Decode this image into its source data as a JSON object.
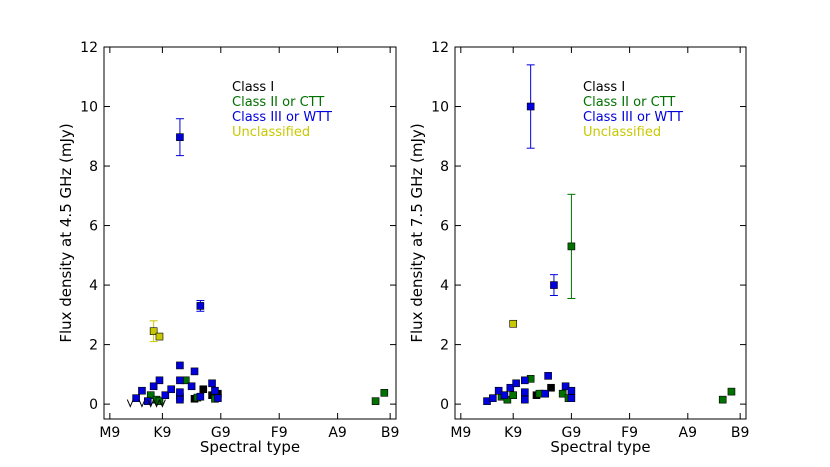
{
  "chart_data": [
    {
      "type": "scatter",
      "title": "",
      "xlabel": "Spectral type",
      "ylabel": "Flux density at 4.5 GHz (mJy)",
      "xlim": [
        -1,
        49
      ],
      "ylim": [
        -0.5,
        12
      ],
      "x_tick_values": [
        0,
        9,
        19,
        29,
        39,
        48
      ],
      "x_tick_labels": [
        "M9",
        "K9",
        "G9",
        "F9",
        "A9",
        "B9"
      ],
      "y_tick_values": [
        0,
        2,
        4,
        6,
        8,
        10,
        12
      ],
      "legend": [
        "Class I",
        "Class II or CTT",
        "Class III or WTT",
        "Unclassified"
      ],
      "legend_position": "top-right",
      "series": [
        {
          "name": "Class I",
          "color": "#000000",
          "points": [
            {
              "x": 14.5,
              "y": 0.18
            },
            {
              "x": 16.0,
              "y": 0.5
            },
            {
              "x": 17.5,
              "y": 0.3
            },
            {
              "x": 12.0,
              "y": 0.25
            },
            {
              "x": 18.5,
              "y": 0.35
            }
          ]
        },
        {
          "name": "Class II or CTT",
          "color": "#007000",
          "points": [
            {
              "x": 7.0,
              "y": 0.3
            },
            {
              "x": 8.0,
              "y": 0.15
            },
            {
              "x": 13.0,
              "y": 0.8
            },
            {
              "x": 15.0,
              "y": 0.22
            },
            {
              "x": 18.0,
              "y": 0.18
            },
            {
              "x": 8.5,
              "y": 0.1
            },
            {
              "x": 45.5,
              "y": 0.1
            },
            {
              "x": 47.0,
              "y": 0.38
            }
          ]
        },
        {
          "name": "Class III or WTT",
          "color": "#0000dd",
          "points": [
            {
              "x": 12.0,
              "y": 8.97,
              "err": 0.62
            },
            {
              "x": 15.5,
              "y": 3.3,
              "err": 0.18
            },
            {
              "x": 4.5,
              "y": 0.2
            },
            {
              "x": 5.5,
              "y": 0.45
            },
            {
              "x": 6.5,
              "y": 0.1
            },
            {
              "x": 7.5,
              "y": 0.6
            },
            {
              "x": 8.5,
              "y": 0.8
            },
            {
              "x": 9.5,
              "y": 0.3
            },
            {
              "x": 10.5,
              "y": 0.5
            },
            {
              "x": 12.0,
              "y": 1.3
            },
            {
              "x": 12.0,
              "y": 0.8
            },
            {
              "x": 12.0,
              "y": 0.4
            },
            {
              "x": 12.0,
              "y": 0.15
            },
            {
              "x": 14.0,
              "y": 0.6
            },
            {
              "x": 14.5,
              "y": 1.1
            },
            {
              "x": 15.5,
              "y": 0.25
            },
            {
              "x": 17.5,
              "y": 0.7
            },
            {
              "x": 18.0,
              "y": 0.45
            },
            {
              "x": 18.5,
              "y": 0.2
            }
          ]
        },
        {
          "name": "Unclassified",
          "color": "#c8c800",
          "points": [
            {
              "x": 7.5,
              "y": 2.45,
              "err": 0.35
            },
            {
              "x": 8.5,
              "y": 2.27
            }
          ]
        }
      ],
      "upper_limit_markers": [
        {
          "x": 3.5,
          "y": 0.02
        },
        {
          "x": 5.5,
          "y": 0.02
        },
        {
          "x": 7.0,
          "y": 0.02
        },
        {
          "x": 8.0,
          "y": 0.02
        },
        {
          "x": 9.0,
          "y": 0.02
        }
      ]
    },
    {
      "type": "scatter",
      "title": "",
      "xlabel": "Spectral type",
      "ylabel": "Flux density at 7.5 GHz (mJy)",
      "xlim": [
        -1,
        49
      ],
      "ylim": [
        -0.5,
        12
      ],
      "x_tick_values": [
        0,
        9,
        19,
        29,
        39,
        48
      ],
      "x_tick_labels": [
        "M9",
        "K9",
        "G9",
        "F9",
        "A9",
        "B9"
      ],
      "y_tick_values": [
        0,
        2,
        4,
        6,
        8,
        10,
        12
      ],
      "legend": [
        "Class I",
        "Class II or CTT",
        "Class III or WTT",
        "Unclassified"
      ],
      "legend_position": "top-right",
      "series": [
        {
          "name": "Class I",
          "color": "#000000",
          "points": [
            {
              "x": 14.0,
              "y": 0.35
            },
            {
              "x": 15.5,
              "y": 0.55
            },
            {
              "x": 13.0,
              "y": 0.3
            }
          ]
        },
        {
          "name": "Class II or CTT",
          "color": "#007000",
          "points": [
            {
              "x": 19.0,
              "y": 5.3,
              "err": 1.75
            },
            {
              "x": 7.0,
              "y": 0.25
            },
            {
              "x": 8.0,
              "y": 0.15
            },
            {
              "x": 9.0,
              "y": 0.3
            },
            {
              "x": 12.0,
              "y": 0.85
            },
            {
              "x": 13.5,
              "y": 0.35
            },
            {
              "x": 17.5,
              "y": 0.35
            },
            {
              "x": 18.5,
              "y": 0.2
            },
            {
              "x": 45.0,
              "y": 0.15
            },
            {
              "x": 46.5,
              "y": 0.42
            }
          ]
        },
        {
          "name": "Class III or WTT",
          "color": "#0000dd",
          "points": [
            {
              "x": 12.0,
              "y": 10.0,
              "err": 1.4
            },
            {
              "x": 16.0,
              "y": 4.0,
              "err": 0.35
            },
            {
              "x": 4.5,
              "y": 0.1
            },
            {
              "x": 5.5,
              "y": 0.2
            },
            {
              "x": 6.5,
              "y": 0.45
            },
            {
              "x": 7.5,
              "y": 0.3
            },
            {
              "x": 8.5,
              "y": 0.55
            },
            {
              "x": 9.5,
              "y": 0.7
            },
            {
              "x": 11.0,
              "y": 0.8
            },
            {
              "x": 11.0,
              "y": 0.4
            },
            {
              "x": 11.0,
              "y": 0.15
            },
            {
              "x": 14.5,
              "y": 0.35
            },
            {
              "x": 15.0,
              "y": 0.95
            },
            {
              "x": 18.0,
              "y": 0.6
            },
            {
              "x": 19.0,
              "y": 0.45
            },
            {
              "x": 19.0,
              "y": 0.2
            }
          ]
        },
        {
          "name": "Unclassified",
          "color": "#c8c800",
          "points": [
            {
              "x": 9.0,
              "y": 2.7
            }
          ]
        }
      ],
      "upper_limit_markers": []
    }
  ]
}
